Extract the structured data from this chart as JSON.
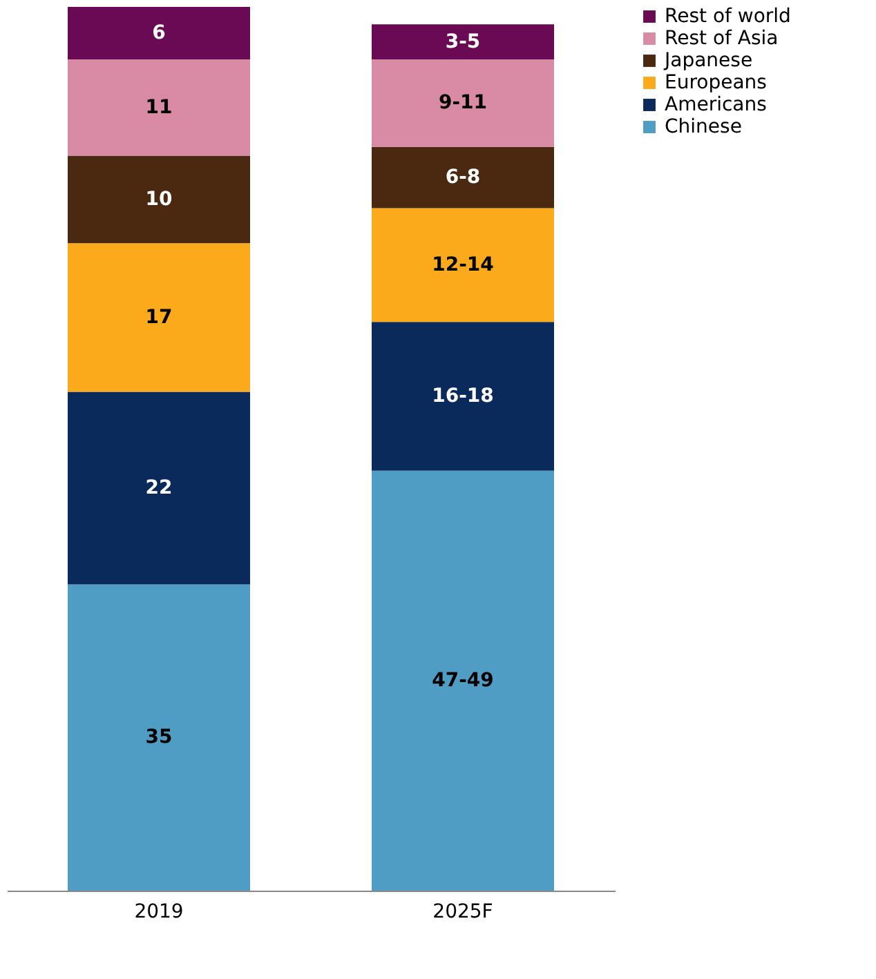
{
  "chart_data": {
    "type": "bar",
    "stacked": true,
    "categories": [
      "2019",
      "2025F"
    ],
    "legend": "right",
    "series": [
      {
        "name": "Chinese",
        "color": "#4f9dc4",
        "values": [
          35,
          48
        ],
        "value_labels": [
          "35",
          "47-49"
        ]
      },
      {
        "name": "Americans",
        "color": "#0b2a5c",
        "values": [
          22,
          17
        ],
        "value_labels": [
          "22",
          "16-18"
        ]
      },
      {
        "name": "Europeans",
        "color": "#fbaa1c",
        "values": [
          17,
          13
        ],
        "value_labels": [
          "17",
          "12-14"
        ]
      },
      {
        "name": "Japanese",
        "color": "#4a2910",
        "values": [
          10,
          7
        ],
        "value_labels": [
          "10",
          "6-8"
        ]
      },
      {
        "name": "Rest of Asia",
        "color": "#d98aa4",
        "values": [
          11,
          10
        ],
        "value_labels": [
          "11",
          "9-11"
        ]
      },
      {
        "name": "Rest of world",
        "color": "#6a0a55",
        "values": [
          6,
          4
        ],
        "value_labels": [
          "6",
          "3-5"
        ]
      }
    ]
  }
}
